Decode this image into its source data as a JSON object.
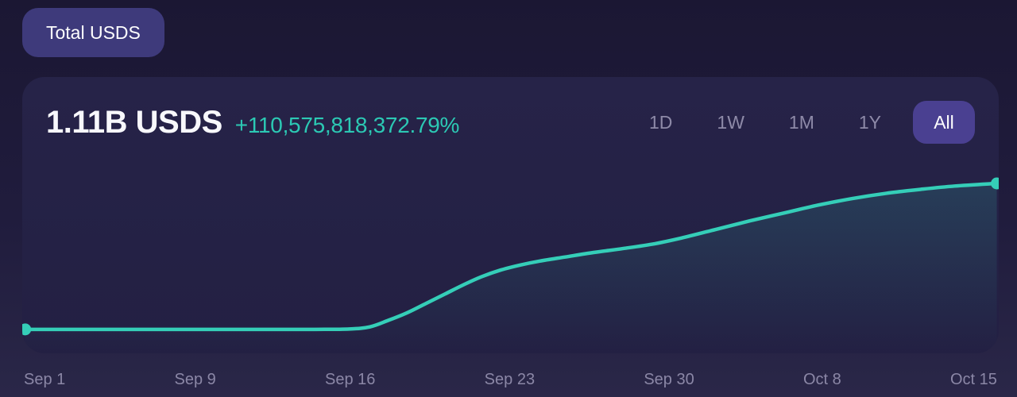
{
  "filter_pill": {
    "label": "Total USDS"
  },
  "header": {
    "value": "1.11B USDS",
    "change": "+110,575,818,372.79%"
  },
  "range_selector": {
    "options": [
      {
        "label": "1D",
        "active": false
      },
      {
        "label": "1W",
        "active": false
      },
      {
        "label": "1M",
        "active": false
      },
      {
        "label": "1Y",
        "active": false
      },
      {
        "label": "All",
        "active": true
      }
    ]
  },
  "colors": {
    "accent_teal": "#35ceb8",
    "change_text": "#2cc9b4",
    "page_bg_top": "#1b1733",
    "page_bg_bottom": "#2a2748",
    "card_bg": "#242146",
    "pill_bg": "#3e3a7b",
    "active_range_bg": "#4a4091",
    "muted_text": "#8e8aa8",
    "tick_text": "#8b87a6"
  },
  "chart_data": {
    "type": "area",
    "title": "Total USDS",
    "unit": "USDS",
    "current_value": "1.11B USDS",
    "percent_change": "+110,575,818,372.79%",
    "x_tick_labels": [
      "Sep 1",
      "Sep 9",
      "Sep 16",
      "Sep 23",
      "Sep 30",
      "Oct 8",
      "Oct 15"
    ],
    "y_axis_visible": false,
    "grid": false,
    "legend": "none",
    "ylim_billions": [
      0,
      1.11
    ],
    "line_color": "#35ceb8",
    "endpoint_dots": true,
    "series": [
      {
        "name": "Total USDS supply (billions USDS)",
        "points": [
          {
            "date": "Sep 1",
            "x": 0.003,
            "v": 0.001
          },
          {
            "date": "Sep 4",
            "x": 0.08,
            "v": 0.001
          },
          {
            "date": "Sep 8",
            "x": 0.16,
            "v": 0.001
          },
          {
            "date": "Sep 12",
            "x": 0.24,
            "v": 0.001
          },
          {
            "date": "Sep 15",
            "x": 0.3,
            "v": 0.001
          },
          {
            "date": "Sep 16",
            "x": 0.335,
            "v": 0.004
          },
          {
            "date": "Sep 17",
            "x": 0.356,
            "v": 0.02
          },
          {
            "date": "Sep 18",
            "x": 0.375,
            "v": 0.07
          },
          {
            "date": "Sep 19",
            "x": 0.395,
            "v": 0.13
          },
          {
            "date": "Sep 19",
            "x": 0.414,
            "v": 0.2
          },
          {
            "date": "Sep 20",
            "x": 0.433,
            "v": 0.27
          },
          {
            "date": "Sep 21",
            "x": 0.452,
            "v": 0.34
          },
          {
            "date": "Sep 22",
            "x": 0.47,
            "v": 0.4
          },
          {
            "date": "Sep 23",
            "x": 0.49,
            "v": 0.452
          },
          {
            "date": "Sep 24",
            "x": 0.51,
            "v": 0.49
          },
          {
            "date": "Sep 25",
            "x": 0.53,
            "v": 0.52
          },
          {
            "date": "Sep 26",
            "x": 0.556,
            "v": 0.551
          },
          {
            "date": "Sep 27",
            "x": 0.585,
            "v": 0.585
          },
          {
            "date": "Sep 28",
            "x": 0.615,
            "v": 0.615
          },
          {
            "date": "Sep 29",
            "x": 0.645,
            "v": 0.648
          },
          {
            "date": "Oct 1",
            "x": 0.675,
            "v": 0.695
          },
          {
            "date": "Oct 3",
            "x": 0.71,
            "v": 0.76
          },
          {
            "date": "Oct 4",
            "x": 0.745,
            "v": 0.825
          },
          {
            "date": "Oct 6",
            "x": 0.78,
            "v": 0.885
          },
          {
            "date": "Oct 8",
            "x": 0.815,
            "v": 0.945
          },
          {
            "date": "Oct 9",
            "x": 0.85,
            "v": 0.995
          },
          {
            "date": "Oct 11",
            "x": 0.885,
            "v": 1.035
          },
          {
            "date": "Oct 12",
            "x": 0.92,
            "v": 1.065
          },
          {
            "date": "Oct 14",
            "x": 0.955,
            "v": 1.09
          },
          {
            "date": "Oct 15",
            "x": 0.998,
            "v": 1.11
          }
        ]
      }
    ]
  }
}
